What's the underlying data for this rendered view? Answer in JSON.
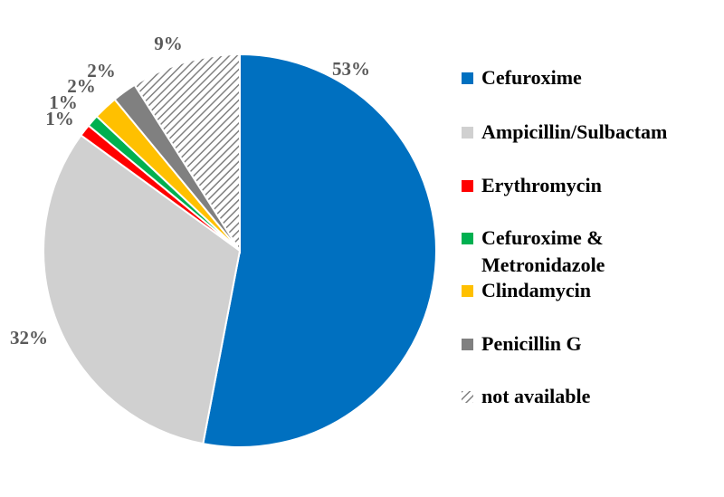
{
  "chart_data": {
    "type": "pie",
    "title": "",
    "legend_position": "right",
    "start_angle_deg": 0,
    "direction": "clockwise",
    "slices": [
      {
        "label": "Cefuroxime",
        "value": 53,
        "value_label": "53%",
        "color": "#0070c0",
        "pattern": "solid"
      },
      {
        "label": "Ampicillin/Sulbactam",
        "value": 32,
        "value_label": "32%",
        "color": "#d0d0d0",
        "pattern": "solid"
      },
      {
        "label": "Erythromycin",
        "value": 1,
        "value_label": "1%",
        "color": "#ff0000",
        "pattern": "solid"
      },
      {
        "label": "Cefuroxime & Metronidazole",
        "label_lines": [
          "Cefuroxime &",
          "Metronidazole"
        ],
        "value": 1,
        "value_label": "1%",
        "color": "#00b050",
        "pattern": "solid"
      },
      {
        "label": "Clindamycin",
        "value": 2,
        "value_label": "2%",
        "color": "#ffc000",
        "pattern": "solid"
      },
      {
        "label": "Penicillin G",
        "value": 2,
        "value_label": "2%",
        "color": "#808080",
        "pattern": "solid"
      },
      {
        "label": "not available",
        "value": 9,
        "value_label": "9%",
        "color": "#808080",
        "pattern": "hatched"
      }
    ]
  }
}
